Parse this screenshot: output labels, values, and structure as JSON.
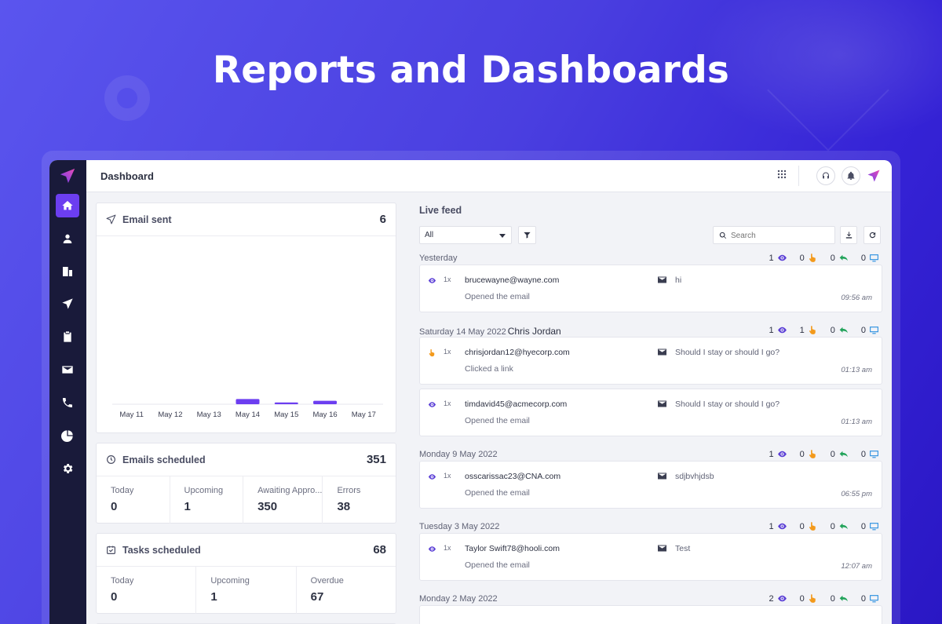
{
  "hero": {
    "title": "Reports and Dashboards"
  },
  "topbar": {
    "title": "Dashboard"
  },
  "sidebar": {
    "items": [
      {
        "icon": "home-icon",
        "active": true
      },
      {
        "icon": "user-icon",
        "active": false
      },
      {
        "icon": "company-icon",
        "active": false
      },
      {
        "icon": "send-icon",
        "active": false
      },
      {
        "icon": "clipboard-icon",
        "active": false
      },
      {
        "icon": "mail-icon",
        "active": false
      },
      {
        "icon": "phone-icon",
        "active": false
      },
      {
        "icon": "pie-chart-icon",
        "active": false
      },
      {
        "icon": "settings-icon",
        "active": false
      }
    ]
  },
  "email_sent": {
    "title": "Email sent",
    "count": "6",
    "chart_data": {
      "type": "bar",
      "categories": [
        "May 11",
        "May 12",
        "May 13",
        "May 14",
        "May 15",
        "May 16",
        "May 17"
      ],
      "values": [
        0,
        0,
        0,
        3,
        1,
        2,
        0
      ],
      "color": "#6c3ef0"
    }
  },
  "emails_scheduled": {
    "title": "Emails scheduled",
    "count": "351",
    "stats": [
      {
        "label": "Today",
        "value": "0"
      },
      {
        "label": "Upcoming",
        "value": "1"
      },
      {
        "label": "Awaiting Appro...",
        "value": "350"
      },
      {
        "label": "Errors",
        "value": "38"
      }
    ]
  },
  "tasks_scheduled": {
    "title": "Tasks scheduled",
    "count": "68",
    "stats": [
      {
        "label": "Today",
        "value": "0"
      },
      {
        "label": "Upcoming",
        "value": "1"
      },
      {
        "label": "Overdue",
        "value": "67"
      }
    ]
  },
  "feed": {
    "title": "Live feed",
    "filter_value": "All",
    "search_placeholder": "Search",
    "groups": [
      {
        "date": "Yesterday",
        "person": "",
        "counts": [
          "1",
          "0",
          "0",
          "0"
        ],
        "entries": [
          {
            "kind": "eye-icon",
            "times": "1x",
            "email": "brucewayne@wayne.com",
            "action": "Opened the email",
            "subject": "hi",
            "time": "09:56 am"
          }
        ]
      },
      {
        "date": "Saturday 14 May 2022",
        "person": "Chris Jordan",
        "counts": [
          "1",
          "1",
          "0",
          "0"
        ],
        "entries": [
          {
            "kind": "click-icon",
            "times": "1x",
            "email": "chrisjordan12@hyecorp.com",
            "action": "Clicked a link",
            "subject": "Should I stay or should I go?",
            "time": "01:13 am"
          },
          {
            "kind": "eye-icon",
            "times": "1x",
            "email": "timdavid45@acmecorp.com",
            "action": "Opened the email",
            "subject": "Should I stay or should I go?",
            "time": "01:13 am"
          }
        ]
      },
      {
        "date": "Monday 9 May 2022",
        "person": "",
        "counts": [
          "1",
          "0",
          "0",
          "0"
        ],
        "entries": [
          {
            "kind": "eye-icon",
            "times": "1x",
            "email": "osscarissac23@CNA.com",
            "action": "Opened the email",
            "subject": "sdjbvhjdsb",
            "time": "06:55 pm"
          }
        ]
      },
      {
        "date": "Tuesday 3 May 2022",
        "person": "",
        "counts": [
          "1",
          "0",
          "0",
          "0"
        ],
        "entries": [
          {
            "kind": "eye-icon",
            "times": "1x",
            "email": "Taylor Swift78@hooli.com",
            "action": "Opened the email",
            "subject": "Test",
            "time": "12:07 am"
          }
        ]
      },
      {
        "date": "Monday 2 May 2022",
        "person": "",
        "counts": [
          "2",
          "0",
          "0",
          "0"
        ],
        "entries": []
      }
    ]
  },
  "colors": {
    "accent": "#6c3ef0",
    "eye": "#5b3fd6",
    "click": "#f39a1c",
    "reply": "#22a35a",
    "monitor": "#2a8fe0"
  }
}
